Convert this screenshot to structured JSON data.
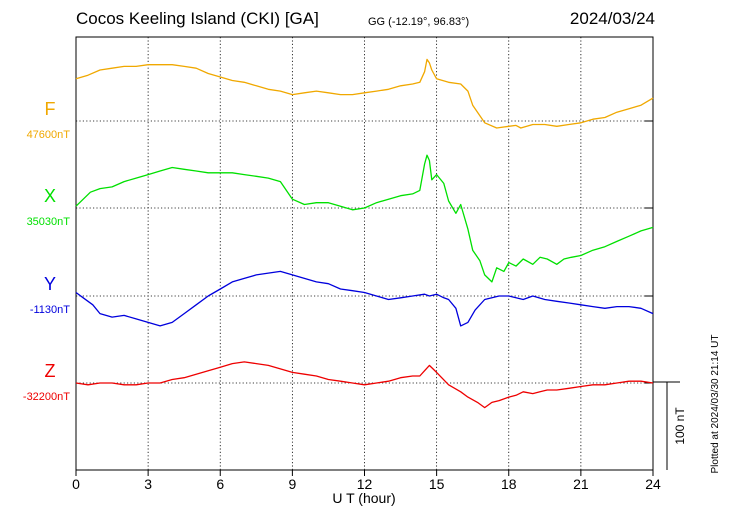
{
  "header": {
    "station": "Cocos Keeling Island (CKI)  [GA]",
    "coords": "GG (-12.19°,  96.83°)",
    "date": "2024/03/24"
  },
  "footer_note": "Plotted at 2024/03/30 21:14 UT",
  "chart_data": {
    "type": "line",
    "xlabel": "U T (hour)",
    "xlim": [
      0,
      24
    ],
    "x_ticks": [
      0,
      3,
      6,
      9,
      12,
      15,
      18,
      21,
      24
    ],
    "x_tick_labels": [
      "0",
      "3",
      "6",
      "9",
      "12",
      "15",
      "18",
      "21",
      "24"
    ],
    "grid": true,
    "scale_bar": {
      "label": "100 nT",
      "nT": 100
    },
    "series": [
      {
        "name": "F",
        "baseline_label": "47600nT",
        "color": "#f0a800",
        "x": [
          0,
          0.5,
          1,
          1.5,
          2,
          2.5,
          3,
          3.5,
          4,
          4.5,
          5,
          5.5,
          6,
          6.5,
          7,
          7.5,
          8,
          8.5,
          9,
          9.5,
          10,
          10.5,
          11,
          11.5,
          12,
          12.5,
          13,
          13.5,
          14,
          14.3,
          14.5,
          14.6,
          14.7,
          14.8,
          15,
          15.5,
          16,
          16.3,
          16.5,
          16.8,
          17,
          17.5,
          18,
          18.3,
          18.5,
          19,
          19.5,
          20,
          20.5,
          21,
          21.5,
          22,
          22.5,
          23,
          23.5,
          24
        ],
        "y": [
          48,
          52,
          58,
          60,
          62,
          62,
          64,
          64,
          64,
          62,
          60,
          54,
          50,
          46,
          44,
          40,
          36,
          34,
          30,
          32,
          34,
          32,
          30,
          30,
          32,
          34,
          36,
          40,
          42,
          44,
          56,
          70,
          66,
          58,
          48,
          44,
          42,
          34,
          18,
          6,
          -2,
          -8,
          -6,
          -5,
          -8,
          -4,
          -4,
          -6,
          -4,
          -2,
          2,
          4,
          10,
          14,
          18,
          26
        ]
      },
      {
        "name": "X",
        "baseline_label": "35030nT",
        "color": "#00e000",
        "x": [
          0,
          0.3,
          0.6,
          1,
          1.5,
          2,
          2.5,
          3,
          3.5,
          4,
          4.5,
          5,
          5.5,
          6,
          6.5,
          7,
          7.5,
          8,
          8.5,
          9,
          9.5,
          10,
          10.5,
          11,
          11.5,
          12,
          12.5,
          13,
          13.5,
          14,
          14.3,
          14.5,
          14.6,
          14.7,
          14.8,
          15,
          15.3,
          15.5,
          15.8,
          16,
          16.3,
          16.5,
          16.8,
          17,
          17.3,
          17.5,
          17.8,
          18,
          18.3,
          18.6,
          19,
          19.3,
          19.6,
          20,
          20.3,
          20.6,
          21,
          21.5,
          22,
          22.5,
          23,
          23.5,
          24
        ],
        "y": [
          2,
          10,
          18,
          22,
          24,
          30,
          34,
          38,
          42,
          46,
          44,
          42,
          40,
          40,
          40,
          38,
          36,
          34,
          30,
          10,
          4,
          6,
          6,
          2,
          -2,
          0,
          6,
          10,
          14,
          16,
          20,
          50,
          60,
          54,
          32,
          38,
          28,
          8,
          -6,
          4,
          -24,
          -48,
          -60,
          -76,
          -84,
          -68,
          -72,
          -62,
          -66,
          -58,
          -64,
          -56,
          -58,
          -64,
          -58,
          -56,
          -54,
          -48,
          -44,
          -38,
          -32,
          -26,
          -22
        ]
      },
      {
        "name": "Y",
        "baseline_label": "-1130nT",
        "color": "#0000dd",
        "x": [
          0,
          0.3,
          0.7,
          1,
          1.5,
          2,
          2.5,
          3,
          3.5,
          4,
          4.5,
          5,
          5.5,
          6,
          6.5,
          7,
          7.5,
          8,
          8.5,
          9,
          9.5,
          10,
          10.5,
          11,
          11.5,
          12,
          12.5,
          13,
          13.5,
          14,
          14.5,
          14.7,
          15,
          15.3,
          15.5,
          15.8,
          16,
          16.3,
          16.6,
          17,
          17.3,
          17.6,
          18,
          18.3,
          18.6,
          19,
          19.5,
          20,
          20.5,
          21,
          21.5,
          22,
          22.5,
          23,
          23.5,
          24
        ],
        "y": [
          4,
          -2,
          -10,
          -20,
          -24,
          -22,
          -26,
          -30,
          -34,
          -30,
          -20,
          -10,
          0,
          8,
          16,
          20,
          24,
          26,
          28,
          24,
          20,
          16,
          14,
          8,
          6,
          4,
          0,
          -4,
          -2,
          0,
          2,
          0,
          2,
          -2,
          -4,
          -14,
          -34,
          -30,
          -16,
          -4,
          -2,
          0,
          0,
          -2,
          -4,
          0,
          -4,
          -6,
          -8,
          -10,
          -12,
          -14,
          -12,
          -12,
          -14,
          -20
        ]
      },
      {
        "name": "Z",
        "baseline_label": "-32200nT",
        "color": "#ee0000",
        "x": [
          0,
          0.5,
          1,
          1.5,
          2,
          2.5,
          3,
          3.5,
          4,
          4.5,
          5,
          5.5,
          6,
          6.5,
          7,
          7.5,
          8,
          8.5,
          9,
          9.5,
          10,
          10.5,
          11,
          11.5,
          12,
          12.5,
          13,
          13.5,
          14,
          14.3,
          14.5,
          14.7,
          15,
          15.5,
          16,
          16.3,
          16.7,
          17,
          17.3,
          17.6,
          18,
          18.3,
          18.6,
          19,
          19.3,
          19.6,
          20,
          20.5,
          21,
          21.5,
          22,
          22.5,
          23,
          23.5,
          24
        ],
        "y": [
          0,
          -2,
          0,
          0,
          -2,
          -2,
          0,
          0,
          4,
          6,
          10,
          14,
          18,
          22,
          24,
          22,
          20,
          16,
          12,
          10,
          8,
          4,
          2,
          0,
          -2,
          0,
          2,
          6,
          8,
          8,
          14,
          20,
          12,
          -2,
          -10,
          -16,
          -22,
          -28,
          -22,
          -20,
          -16,
          -14,
          -10,
          -12,
          -10,
          -8,
          -8,
          -6,
          -4,
          -2,
          -2,
          0,
          2,
          2,
          0
        ]
      }
    ]
  }
}
